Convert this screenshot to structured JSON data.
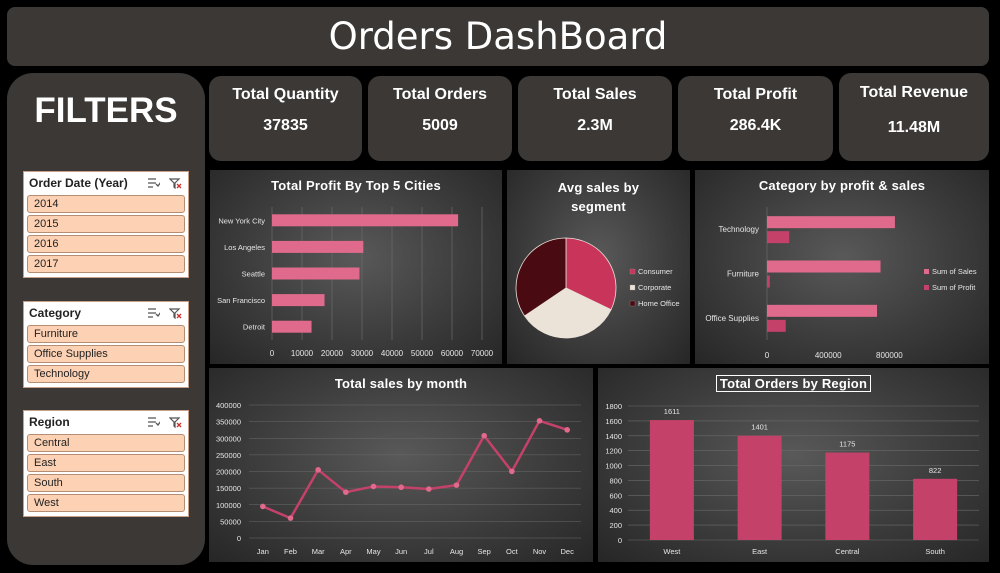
{
  "page": {
    "title": "Orders DashBoard"
  },
  "filters": {
    "title": "FILTERS",
    "slicers": [
      {
        "title": "Order Date (Year)",
        "items": [
          "2014",
          "2015",
          "2016",
          "2017"
        ]
      },
      {
        "title": "Category",
        "items": [
          "Furniture",
          "Office Supplies",
          "Technology"
        ]
      },
      {
        "title": "Region",
        "items": [
          "Central",
          "East",
          "South",
          "West"
        ]
      }
    ]
  },
  "kpis": [
    {
      "label": "Total Quantity",
      "value": "37835"
    },
    {
      "label": "Total Orders",
      "value": "5009"
    },
    {
      "label": "Total Sales",
      "value": "2.3M"
    },
    {
      "label": "Total Profit",
      "value": "286.4K"
    },
    {
      "label": "Total Revenue",
      "value": "11.48M"
    }
  ],
  "colors": {
    "accent": "#c4426a",
    "bar": "#e06a8c",
    "pie_consumer": "#c9355a",
    "pie_corporate": "#ece3d8",
    "pie_home_office": "#4a0a12"
  },
  "chart_data": [
    {
      "type": "bar",
      "orientation": "horizontal",
      "title": "Total Profit By Top 5 Cities",
      "categories": [
        "New York City",
        "Los Angeles",
        "Seattle",
        "San Francisco",
        "Detroit"
      ],
      "values": [
        62037,
        30440,
        29156,
        17507,
        13181
      ],
      "xlim": [
        0,
        70000
      ],
      "xticks": [
        "0",
        "10000",
        "20000",
        "30000",
        "40000",
        "50000",
        "60000",
        "70000"
      ],
      "grid": true
    },
    {
      "type": "pie",
      "title": "Avg sales by segment",
      "labels": [
        "Consumer",
        "Corporate",
        "Home Office"
      ],
      "values": [
        225,
        234,
        241
      ],
      "legend": "right"
    },
    {
      "type": "bar",
      "orientation": "horizontal",
      "title": "Category by profit & sales",
      "categories": [
        "Technology",
        "Furniture",
        "Office Supplies"
      ],
      "series": [
        {
          "name": "Sum of Sales",
          "values": [
            836154,
            741999,
            719047
          ]
        },
        {
          "name": "Sum of Profit",
          "values": [
            145455,
            18451,
            122491
          ]
        }
      ],
      "xlim": [
        0,
        1000000
      ],
      "xticks": [
        "0",
        "400000",
        "800000"
      ],
      "legend": "right"
    },
    {
      "type": "line",
      "title": "Total sales by month",
      "categories": [
        "Jan",
        "Feb",
        "Mar",
        "Apr",
        "May",
        "Jun",
        "Jul",
        "Aug",
        "Sep",
        "Oct",
        "Nov",
        "Dec"
      ],
      "values": [
        94925,
        59751,
        205005,
        137762,
        155028,
        152718,
        147238,
        159044,
        307650,
        200323,
        352461,
        325293
      ],
      "ylim": [
        0,
        400000
      ],
      "yticks": [
        "0",
        "50000",
        "100000",
        "150000",
        "200000",
        "250000",
        "300000",
        "350000",
        "400000"
      ],
      "grid": true
    },
    {
      "type": "bar",
      "title": "Total Orders by Region",
      "categories": [
        "West",
        "East",
        "Central",
        "South"
      ],
      "values": [
        1611,
        1401,
        1175,
        822
      ],
      "data_labels": [
        "1611",
        "1401",
        "1175",
        "822"
      ],
      "ylim": [
        0,
        1800
      ],
      "yticks": [
        "0",
        "200",
        "400",
        "600",
        "800",
        "1000",
        "1200",
        "1400",
        "1600",
        "1800"
      ],
      "grid": true
    }
  ]
}
